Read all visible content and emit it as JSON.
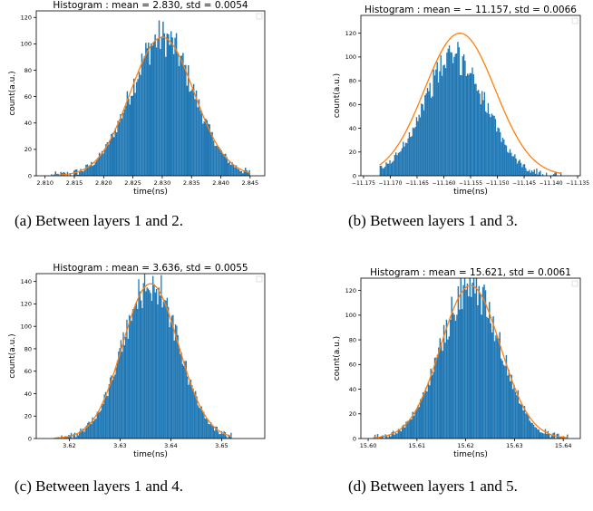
{
  "figure": {
    "captions": [
      "(a) Between layers 1 and 2.",
      "(b) Between layers 1 and 3.",
      "(c) Between layers 1 and 4.",
      "(d) Between layers 1 and 5."
    ]
  },
  "chart_data": [
    {
      "type": "bar",
      "title": "Histogram :  mean = 2.830,  std = 0.0054",
      "xlabel": "time(ns)",
      "ylabel": "count(a.u.)",
      "xlim": [
        2.8085,
        2.8475
      ],
      "ylim": [
        0,
        125
      ],
      "xticks": [
        2.81,
        2.815,
        2.82,
        2.825,
        2.83,
        2.835,
        2.84,
        2.845
      ],
      "xtick_labels": [
        "2.810",
        "2.815",
        "2.820",
        "2.825",
        "2.830",
        "2.835",
        "2.840",
        "2.845"
      ],
      "yticks": [
        0,
        20,
        40,
        60,
        80,
        100,
        120
      ],
      "mean": 2.83,
      "std": 0.0054,
      "fit_peak": 105,
      "bar_range": [
        2.811,
        2.845
      ],
      "bins": 150,
      "bar_color": "#1f77b4",
      "fit_color": "#ff7f0e",
      "legend": "top-right (empty box)",
      "grid": false
    },
    {
      "type": "bar",
      "title": "Histogram :  mean = − 11.157,  std = 0.0066",
      "xlabel": "time(ns)",
      "ylabel": "count(a.u.)",
      "xlim": [
        -11.1755,
        -11.1345
      ],
      "ylim": [
        0,
        135
      ],
      "xticks": [
        -11.175,
        -11.17,
        -11.165,
        -11.16,
        -11.155,
        -11.15,
        -11.145,
        -11.14,
        -11.135
      ],
      "xtick_labels": [
        "−11.175",
        "−11.170",
        "−11.165",
        "−11.160",
        "−11.155",
        "−11.150",
        "−11.145",
        "−11.140",
        "−11.135"
      ],
      "yticks": [
        0,
        20,
        40,
        60,
        80,
        100,
        120
      ],
      "mean": -11.157,
      "std": 0.0066,
      "fit_peak": 120,
      "bar_mode": 100,
      "bar_range": [
        -11.172,
        -11.138
      ],
      "bins": 150,
      "bar_color": "#1f77b4",
      "fit_color": "#ff7f0e",
      "legend": "top-right (empty box)",
      "grid": false
    },
    {
      "type": "bar",
      "title": "Histogram :  mean = 3.636,  std = 0.0055",
      "xlabel": "time(ns)",
      "ylabel": "count(a.u.)",
      "xlim": [
        3.6135,
        3.6585
      ],
      "ylim": [
        0,
        147
      ],
      "xticks": [
        3.62,
        3.63,
        3.64,
        3.65
      ],
      "xtick_labels": [
        "3.62",
        "3.63",
        "3.64",
        "3.65"
      ],
      "yticks": [
        0,
        20,
        40,
        60,
        80,
        100,
        120,
        140
      ],
      "mean": 3.636,
      "std": 0.0055,
      "fit_peak": 138,
      "bar_range": [
        3.617,
        3.652
      ],
      "bins": 150,
      "bar_color": "#1f77b4",
      "fit_color": "#ff7f0e",
      "legend": "top-right (empty box)",
      "grid": false
    },
    {
      "type": "bar",
      "title": "Histogram :  mean = 15.621,  std = 0.0061",
      "xlabel": "time(ns)",
      "ylabel": "count(a.u.)",
      "xlim": [
        15.5985,
        15.6435
      ],
      "ylim": [
        0,
        130
      ],
      "xticks": [
        15.6,
        15.61,
        15.62,
        15.63,
        15.64
      ],
      "xtick_labels": [
        "15.60",
        "15.61",
        "15.62",
        "15.63",
        "15.64"
      ],
      "yticks": [
        0,
        20,
        40,
        60,
        80,
        100,
        120
      ],
      "mean": 15.621,
      "std": 0.0061,
      "fit_peak": 124,
      "bar_range": [
        15.601,
        15.641
      ],
      "bins": 150,
      "bar_color": "#1f77b4",
      "fit_color": "#ff7f0e",
      "legend": "top-right (empty box)",
      "grid": false
    }
  ]
}
